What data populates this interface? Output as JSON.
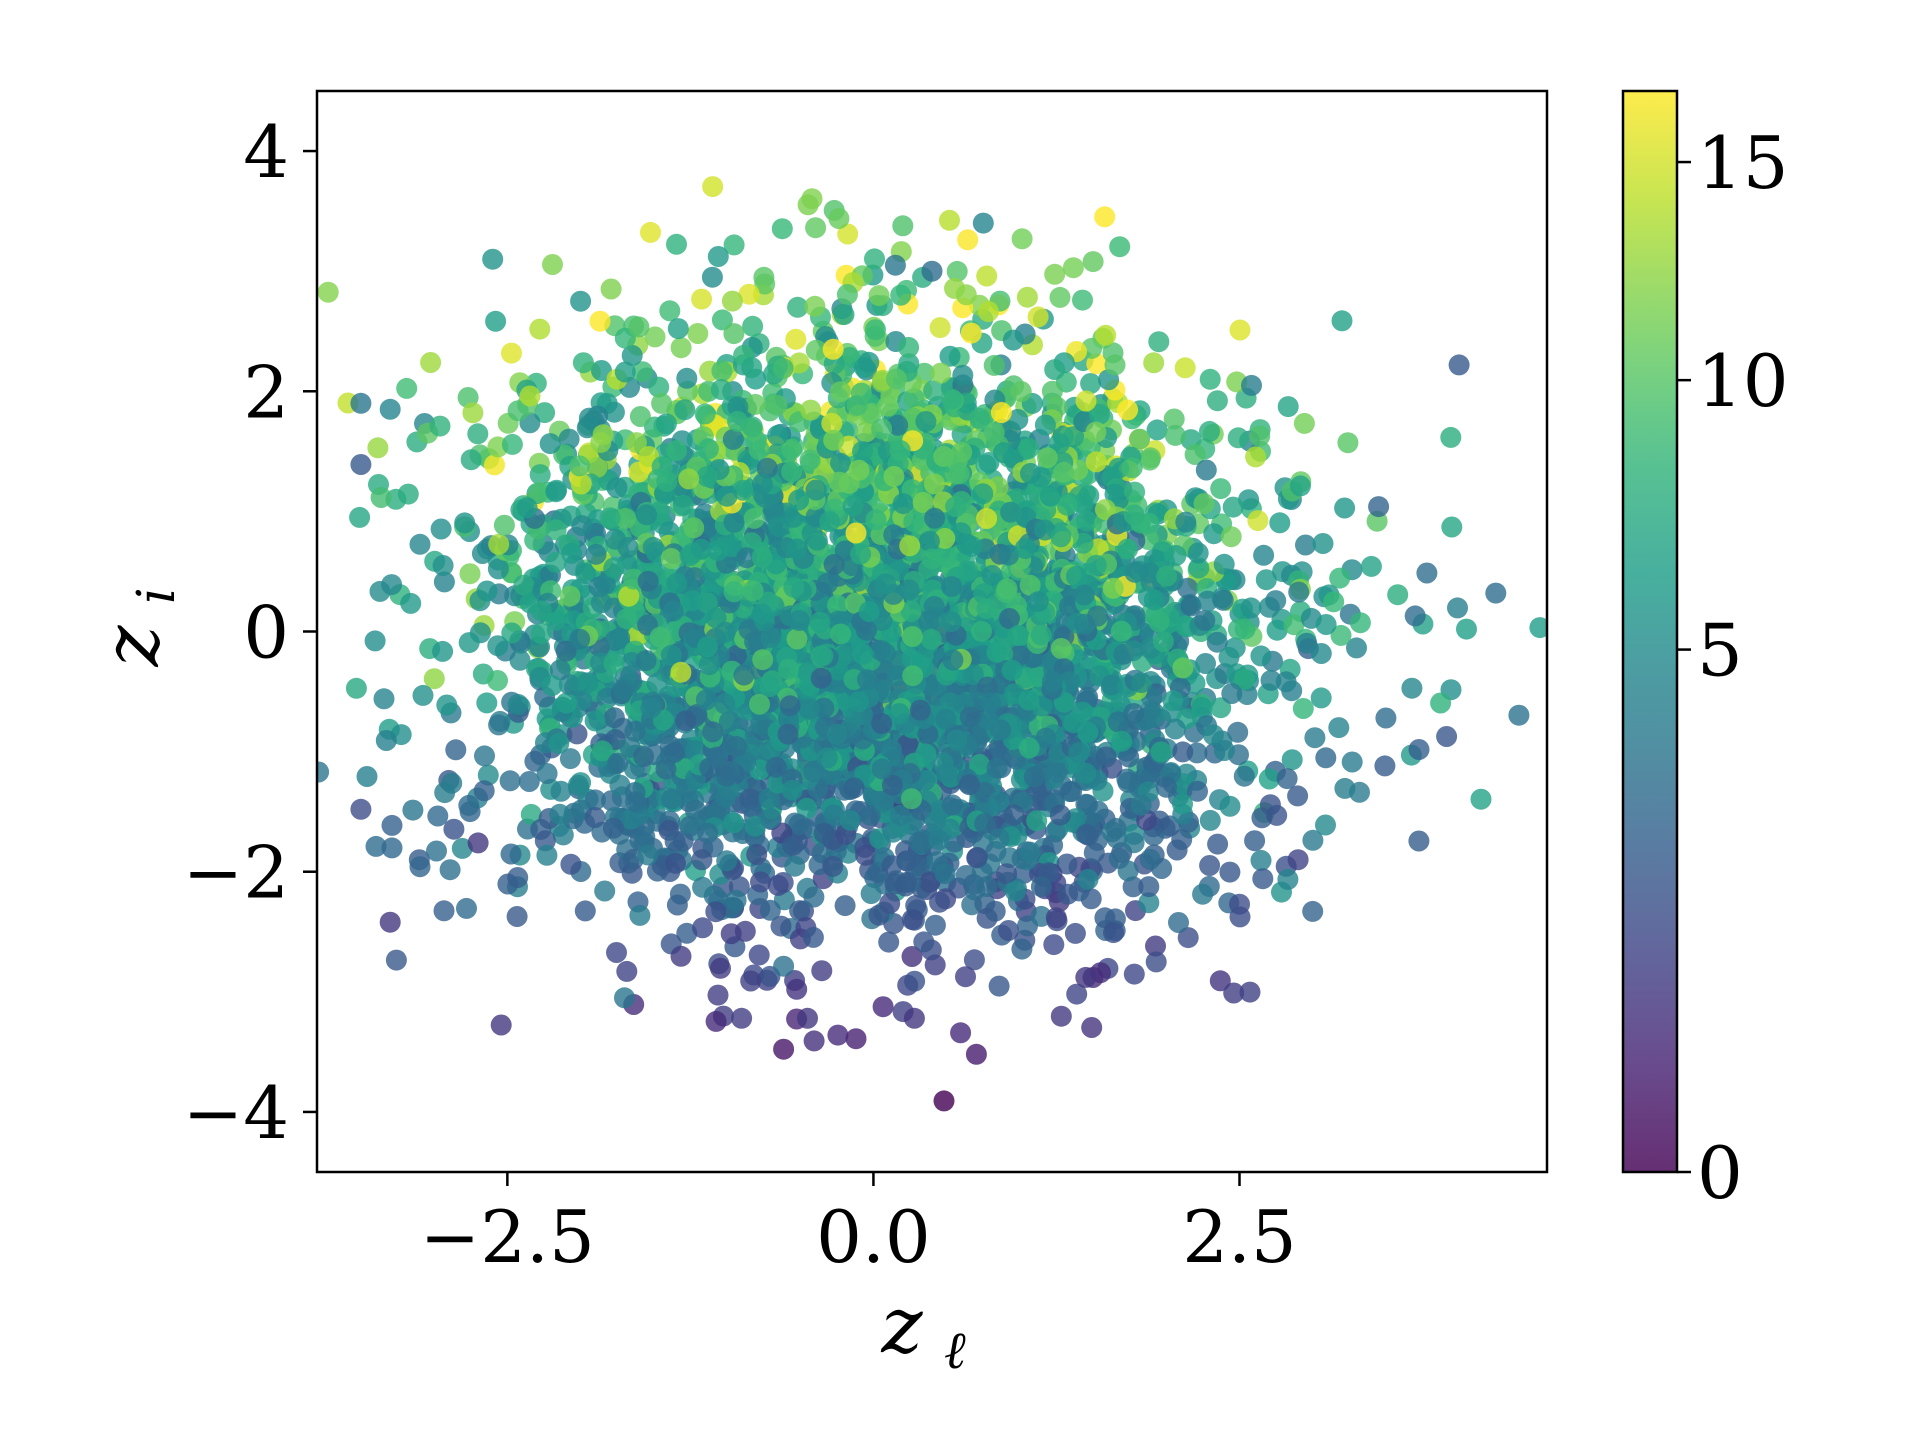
{
  "chart_data": {
    "type": "scatter",
    "xlabel": "z",
    "xlabel_sub": "ℓ",
    "ylabel": "z",
    "ylabel_sub": "i",
    "xlim": [
      -3.8,
      4.6
    ],
    "ylim": [
      -4.5,
      4.5
    ],
    "xticks": [
      -2.5,
      0.0,
      2.5
    ],
    "xtick_labels": [
      "−2.5",
      "0.0",
      "2.5"
    ],
    "yticks": [
      -4,
      -2,
      0,
      2,
      4
    ],
    "ytick_labels": [
      "−4",
      "−2",
      "0",
      "2",
      "4"
    ],
    "colorbar": {
      "range": [
        0,
        16.8
      ],
      "ticks": [
        0,
        5,
        10,
        15
      ],
      "tick_labels": [
        "0",
        "5",
        "10",
        "15"
      ],
      "colormap": "viridis",
      "scale": "power-stretched"
    },
    "grid": false,
    "marker_alpha": 0.8,
    "approximate_point_count": 5000,
    "cloud": {
      "x_mean": 0.0,
      "x_std": 1.25,
      "y_mean": 0.0,
      "y_std": 1.15,
      "color_trend": "increases with z_i"
    },
    "outliers": [
      {
        "x": -2.6,
        "y": 3.1,
        "c": 5.5
      },
      {
        "x": 0.75,
        "y": 3.4,
        "c": 4.5
      },
      {
        "x": 1.5,
        "y": 3.08,
        "c": 10.5
      },
      {
        "x": 0.15,
        "y": 3.05,
        "c": 3.5
      },
      {
        "x": 0.4,
        "y": 3.0,
        "c": 3.0
      },
      {
        "x": -1.1,
        "y": 2.95,
        "c": 5.0
      },
      {
        "x": -2.0,
        "y": 2.75,
        "c": 5.5
      },
      {
        "x": 4.0,
        "y": 2.22,
        "c": 2.0
      },
      {
        "x": 1.65,
        "y": 2.22,
        "c": 10.0
      },
      {
        "x": -3.5,
        "y": 1.9,
        "c": 3.5
      },
      {
        "x": -3.3,
        "y": 1.85,
        "c": 4.5
      },
      {
        "x": 2.3,
        "y": 2.1,
        "c": 8.0
      },
      {
        "x": 3.95,
        "y": 0.87,
        "c": 7.0
      },
      {
        "x": 3.45,
        "y": 1.04,
        "c": 2.5
      },
      {
        "x": 4.25,
        "y": 0.32,
        "c": 3.0
      },
      {
        "x": 4.05,
        "y": 0.02,
        "c": 6.5
      },
      {
        "x": 3.7,
        "y": 0.13,
        "c": 3.0
      },
      {
        "x": 3.5,
        "y": -0.72,
        "c": 3.0
      },
      {
        "x": -3.5,
        "y": 1.39,
        "c": 2.0
      },
      {
        "x": -3.5,
        "y": -1.48,
        "c": 1.5
      },
      {
        "x": -3.3,
        "y": -2.42,
        "c": 0.8
      },
      {
        "x": -2.7,
        "y": -1.76,
        "c": 0.8
      },
      {
        "x": -1.7,
        "y": -3.05,
        "c": 3.5
      },
      {
        "x": -0.9,
        "y": -3.22,
        "c": 1.0
      },
      {
        "x": -0.45,
        "y": -3.22,
        "c": 0.8
      },
      {
        "x": 0.28,
        "y": -3.22,
        "c": 0.8
      },
      {
        "x": 1.45,
        "y": -2.88,
        "c": 0.8
      },
      {
        "x": 3.0,
        "y": -2.33,
        "c": 2.5
      },
      {
        "x": 2.5,
        "y": -2.27,
        "c": 1.5
      },
      {
        "x": 2.9,
        "y": -1.9,
        "c": 1.2
      }
    ]
  }
}
